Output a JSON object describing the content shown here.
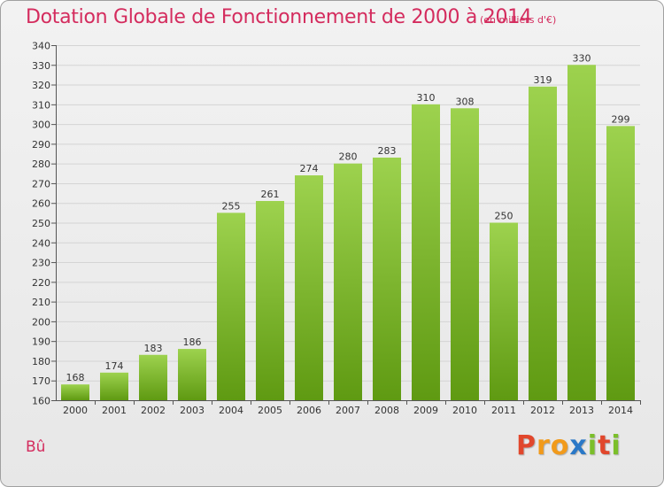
{
  "header": {
    "title": "Dotation Globale de Fonctionnement de 2000 à 2014",
    "unit": "(en milliers d'€)"
  },
  "footer": {
    "commune": "Bû",
    "logo_text": "Proxiti"
  },
  "colors": {
    "title": "#d42c5e",
    "bar_top": "#9dd24e",
    "bar_bottom": "#5f9a12",
    "logo_letters": [
      "#e1472c",
      "#f19a1b",
      "#f19a1b",
      "#2a78c7",
      "#7bbf2a",
      "#e1472c",
      "#7bbf2a"
    ]
  },
  "chart_data": {
    "type": "bar",
    "categories": [
      "2000",
      "2001",
      "2002",
      "2003",
      "2004",
      "2005",
      "2006",
      "2007",
      "2008",
      "2009",
      "2010",
      "2011",
      "2012",
      "2013",
      "2014"
    ],
    "values": [
      168,
      174,
      183,
      186,
      255,
      261,
      274,
      280,
      283,
      310,
      308,
      250,
      319,
      330,
      299
    ],
    "ylim": [
      160,
      340
    ],
    "yticks": [
      160,
      170,
      180,
      190,
      200,
      210,
      220,
      230,
      240,
      250,
      260,
      270,
      280,
      290,
      300,
      310,
      320,
      330,
      340
    ],
    "grid": true,
    "data_labels": true
  }
}
